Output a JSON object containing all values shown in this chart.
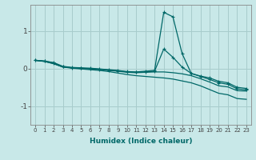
{
  "xlabel": "Humidex (Indice chaleur)",
  "ylabel": "",
  "xlim": [
    -0.5,
    23.5
  ],
  "ylim": [
    -1.5,
    1.7
  ],
  "background_color": "#c8e8e8",
  "grid_color": "#a8cccc",
  "line_color": "#006868",
  "yticks": [
    -1,
    0,
    1
  ],
  "xticks": [
    0,
    1,
    2,
    3,
    4,
    5,
    6,
    7,
    8,
    9,
    10,
    11,
    12,
    13,
    14,
    15,
    16,
    17,
    18,
    19,
    20,
    21,
    22,
    23
  ],
  "lines": [
    {
      "x": [
        0,
        1,
        2,
        3,
        4,
        5,
        6,
        7,
        8,
        9,
        10,
        11,
        12,
        13,
        14,
        15,
        16,
        17,
        18,
        19,
        20,
        21,
        22,
        23
      ],
      "y": [
        0.22,
        0.2,
        0.16,
        0.06,
        0.03,
        0.02,
        0.01,
        -0.01,
        -0.03,
        -0.05,
        -0.08,
        -0.09,
        -0.07,
        -0.05,
        1.5,
        1.38,
        0.4,
        -0.13,
        -0.2,
        -0.25,
        -0.34,
        -0.38,
        -0.5,
        -0.53
      ],
      "marker": "+"
    },
    {
      "x": [
        0,
        1,
        2,
        3,
        4,
        5,
        6,
        7,
        8,
        9,
        10,
        11,
        12,
        13,
        14,
        15,
        16,
        17,
        18,
        19,
        20,
        21,
        22,
        23
      ],
      "y": [
        0.22,
        0.2,
        0.15,
        0.05,
        0.02,
        0.01,
        -0.01,
        -0.02,
        -0.04,
        -0.06,
        -0.09,
        -0.1,
        -0.09,
        -0.07,
        0.52,
        0.3,
        0.04,
        -0.13,
        -0.21,
        -0.29,
        -0.38,
        -0.42,
        -0.54,
        -0.57
      ],
      "marker": "+"
    },
    {
      "x": [
        0,
        1,
        2,
        3,
        4,
        5,
        6,
        7,
        8,
        9,
        10,
        11,
        12,
        13,
        14,
        15,
        16,
        17,
        18,
        19,
        20,
        21,
        22,
        23
      ],
      "y": [
        0.22,
        0.19,
        0.13,
        0.04,
        0.02,
        0.0,
        -0.01,
        -0.02,
        -0.05,
        -0.07,
        -0.1,
        -0.11,
        -0.1,
        -0.09,
        -0.09,
        -0.11,
        -0.14,
        -0.19,
        -0.27,
        -0.36,
        -0.46,
        -0.49,
        -0.59,
        -0.6
      ],
      "marker": null
    },
    {
      "x": [
        0,
        1,
        2,
        3,
        4,
        5,
        6,
        7,
        8,
        9,
        10,
        11,
        12,
        13,
        14,
        15,
        16,
        17,
        18,
        19,
        20,
        21,
        22,
        23
      ],
      "y": [
        0.22,
        0.19,
        0.13,
        0.04,
        0.01,
        -0.01,
        -0.03,
        -0.05,
        -0.08,
        -0.12,
        -0.16,
        -0.19,
        -0.21,
        -0.23,
        -0.25,
        -0.28,
        -0.33,
        -0.38,
        -0.46,
        -0.56,
        -0.66,
        -0.7,
        -0.8,
        -0.82
      ],
      "marker": null
    }
  ]
}
